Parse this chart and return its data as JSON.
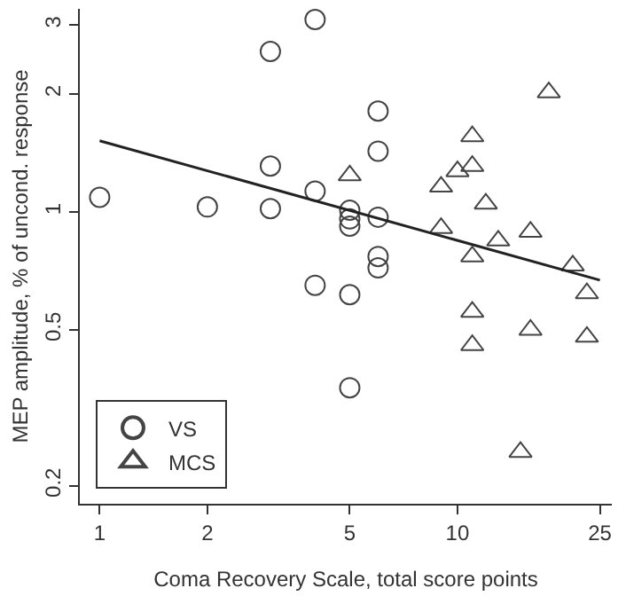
{
  "chart_data": {
    "type": "scatter",
    "xlabel": "Coma Recovery Scale, total score points",
    "ylabel": "MEP amplitude, % of uncond. response",
    "log": "xy",
    "legend": "bottom left",
    "xlim": [
      0.88,
      27
    ],
    "xticks": [
      1,
      2,
      5,
      10,
      25
    ],
    "ylim": [
      0.18,
      3.3
    ],
    "yticks": [
      0.2,
      0.5,
      1,
      2,
      3
    ],
    "series": [
      {
        "name": "VS",
        "color": "#444444",
        "marker": "circle",
        "x": [
          1,
          2,
          3,
          3,
          3,
          4,
          4,
          4,
          5,
          5,
          5,
          5,
          5,
          6,
          6,
          6,
          6,
          6
        ],
        "values": [
          1.09,
          1.03,
          1.02,
          1.31,
          2.57,
          3.1,
          1.13,
          0.65,
          1.01,
          0.96,
          0.92,
          0.615,
          0.356,
          1.81,
          1.43,
          0.97,
          0.77,
          0.72
        ]
      },
      {
        "name": "MCS",
        "color": "#444444",
        "marker": "triangle",
        "x": [
          5,
          9,
          9,
          10,
          11,
          11,
          12,
          11,
          13,
          16,
          11,
          11,
          16,
          18,
          15,
          21,
          23,
          23
        ],
        "values": [
          1.24,
          1.16,
          0.91,
          1.27,
          1.56,
          1.31,
          1.05,
          0.77,
          0.845,
          0.89,
          0.556,
          0.457,
          0.5,
          2.02,
          0.244,
          0.73,
          0.62,
          0.48
        ]
      },
      {
        "type": "line",
        "color": "#222222",
        "line_style": "solid",
        "x": [
          1,
          25
        ],
        "values": [
          1.52,
          0.67
        ]
      }
    ]
  }
}
